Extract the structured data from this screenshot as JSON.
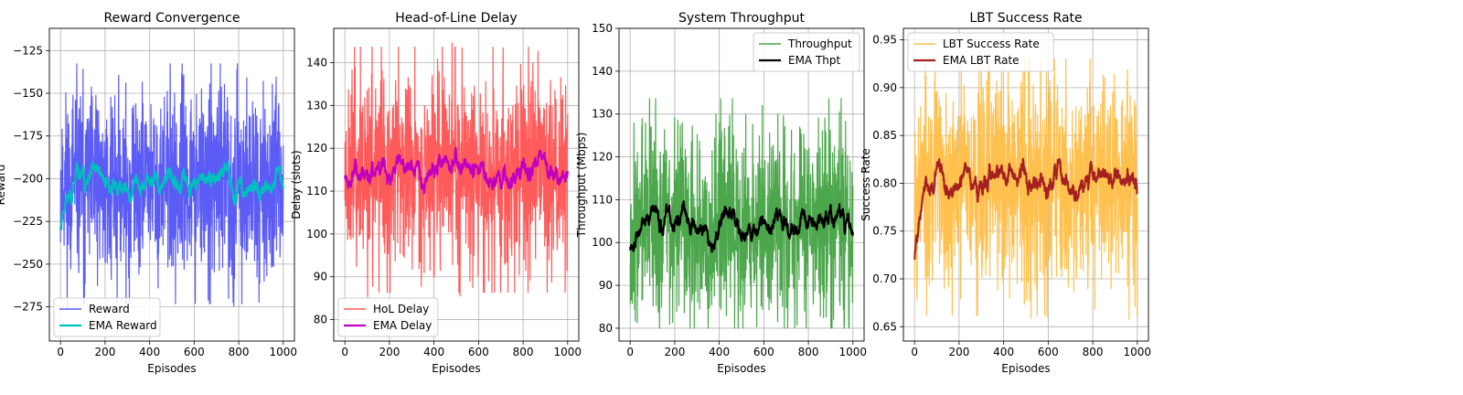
{
  "chart_data": [
    {
      "type": "line",
      "title": "Reward Convergence",
      "xlabel": "Episodes",
      "ylabel": "Reward",
      "xlim": [
        -50,
        1050
      ],
      "ylim": [
        -295,
        -112
      ],
      "xticks": [
        0,
        200,
        400,
        600,
        800,
        1000
      ],
      "yticks": [
        -275,
        -250,
        -225,
        -200,
        -175,
        -150,
        -125
      ],
      "grid": true,
      "legend": "lower-left",
      "x": {
        "start": 0,
        "end": 1000,
        "points": 1001
      },
      "series": [
        {
          "name": "Reward",
          "role": "raw",
          "color": "#5b5bf5",
          "mean": -203,
          "noise": 27,
          "min": -285,
          "max": -122,
          "seed": 11
        },
        {
          "name": "EMA Reward",
          "role": "ema",
          "color": "#00bfbf",
          "start": -230,
          "alpha": 0.05,
          "smooth_of": 0
        }
      ]
    },
    {
      "type": "line",
      "title": "Head-of-Line Delay",
      "xlabel": "Episodes",
      "ylabel": "Delay (slots)",
      "xlim": [
        -50,
        1050
      ],
      "ylim": [
        75,
        148
      ],
      "xticks": [
        0,
        200,
        400,
        600,
        800,
        1000
      ],
      "yticks": [
        80,
        90,
        100,
        110,
        120,
        130,
        140
      ],
      "grid": true,
      "legend": "lower-left",
      "x": {
        "start": 0,
        "end": 1000,
        "points": 1001
      },
      "series": [
        {
          "name": "HoL Delay",
          "role": "raw",
          "color": "#ff5a5a",
          "mean": 115,
          "noise": 11,
          "min": 78,
          "max": 145,
          "seed": 23
        },
        {
          "name": "EMA Delay",
          "role": "ema",
          "color": "#c000c0",
          "start": 113,
          "alpha": 0.05,
          "smooth_of": 0
        }
      ]
    },
    {
      "type": "line",
      "title": "System Throughput",
      "xlabel": "Episodes",
      "ylabel": "Throughput (Mbps)",
      "xlim": [
        -50,
        1050
      ],
      "ylim": [
        77,
        150
      ],
      "xticks": [
        0,
        200,
        400,
        600,
        800,
        1000
      ],
      "yticks": [
        80,
        90,
        100,
        110,
        120,
        130,
        140,
        150
      ],
      "grid": true,
      "legend": "upper-right",
      "x": {
        "start": 0,
        "end": 1000,
        "points": 1001
      },
      "series": [
        {
          "name": "Throughput",
          "role": "raw",
          "color": "#4ca64c",
          "mean": 105,
          "noise": 11,
          "min": 80,
          "max": 147,
          "seed": 37
        },
        {
          "name": "EMA Thpt",
          "role": "ema",
          "color": "#000000",
          "start": 99,
          "alpha": 0.05,
          "smooth_of": 0
        }
      ]
    },
    {
      "type": "line",
      "title": "LBT Success Rate",
      "xlabel": "Episodes",
      "ylabel": "Success Rate",
      "xlim": [
        -50,
        1050
      ],
      "ylim": [
        0.635,
        0.962
      ],
      "xticks": [
        0,
        200,
        400,
        600,
        800,
        1000
      ],
      "yticks": [
        0.65,
        0.7,
        0.75,
        0.8,
        0.85,
        0.9,
        0.95
      ],
      "ytick_decimals": 2,
      "grid": true,
      "legend": "upper-left",
      "x": {
        "start": 0,
        "end": 1000,
        "points": 1001
      },
      "series": [
        {
          "name": "LBT Success Rate",
          "role": "raw",
          "color": "#ffc04d",
          "mean": 0.805,
          "noise": 0.055,
          "min": 0.648,
          "max": 0.93,
          "seed": 53
        },
        {
          "name": "EMA LBT Rate",
          "role": "ema",
          "color": "#a52020",
          "start": 0.72,
          "alpha": 0.05,
          "smooth_of": 0
        }
      ]
    }
  ]
}
